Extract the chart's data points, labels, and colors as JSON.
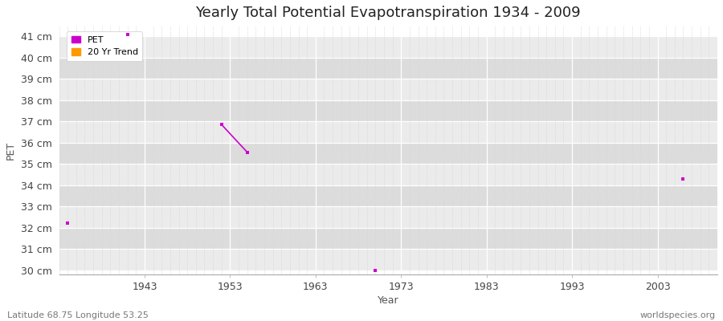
{
  "title": "Yearly Total Potential Evapotranspiration 1934 - 2009",
  "xlabel": "Year",
  "ylabel": "PET",
  "xlim": [
    1933,
    2010
  ],
  "ylim": [
    29.8,
    41.5
  ],
  "yticks": [
    30,
    31,
    32,
    33,
    34,
    35,
    36,
    37,
    38,
    39,
    40,
    41
  ],
  "ytick_labels": [
    "30 cm",
    "31 cm",
    "32 cm",
    "33 cm",
    "34 cm",
    "35 cm",
    "36 cm",
    "37 cm",
    "38 cm",
    "39 cm",
    "40 cm",
    "41 cm"
  ],
  "xticks": [
    1943,
    1953,
    1963,
    1973,
    1983,
    1993,
    2003
  ],
  "pet_color": "#cc00cc",
  "trend_color": "#ff9900",
  "bg_color_light": "#ebebeb",
  "bg_color_dark": "#dcdcdc",
  "grid_major_color": "#ffffff",
  "grid_minor_color": "#d8d8d8",
  "pet_points": [
    [
      1934,
      32.2
    ],
    [
      1941,
      41.1
    ],
    [
      1952,
      36.85
    ],
    [
      1955,
      35.55
    ],
    [
      1970,
      30.0
    ],
    [
      2006,
      34.3
    ]
  ],
  "trend_line": [
    [
      1952,
      36.85
    ],
    [
      1955,
      35.55
    ]
  ],
  "footer_left": "Latitude 68.75 Longitude 53.25",
  "footer_right": "worldspecies.org",
  "title_fontsize": 13,
  "axis_label_fontsize": 9,
  "tick_fontsize": 9,
  "footer_fontsize": 8
}
